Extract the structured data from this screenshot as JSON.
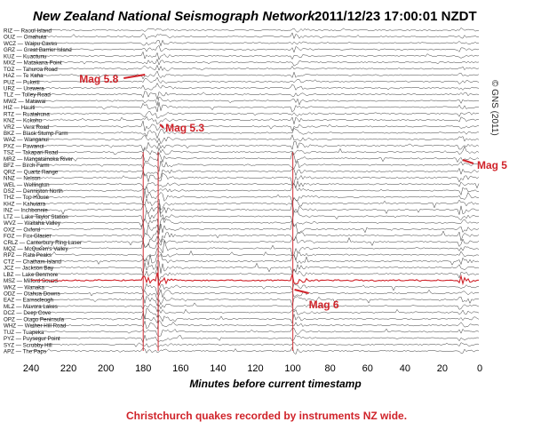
{
  "header": {
    "title": "New Zealand National Seismograph Network",
    "timestamp": "2011/12/23 17:00:01 NZDT",
    "copyright": "© GNS (2011)"
  },
  "caption": "Christchurch quakes recorded by instruments NZ wide.",
  "chart_data": {
    "type": "line",
    "title": "New Zealand National Seismograph Network",
    "xlabel": "Minutes before current timestamp",
    "ylabel": "",
    "xlim": [
      240,
      0
    ],
    "x_ticks": [
      240,
      220,
      200,
      180,
      160,
      140,
      120,
      100,
      80,
      60,
      40,
      20,
      0
    ],
    "grid": false,
    "stations": [
      {
        "code": "RIZ",
        "name": "Raoul Island"
      },
      {
        "code": "OUZ",
        "name": "Omahuta"
      },
      {
        "code": "WCZ",
        "name": "Waipu Caves"
      },
      {
        "code": "GRZ",
        "name": "Great Barrier Island"
      },
      {
        "code": "KUZ",
        "name": "Kuaotunu"
      },
      {
        "code": "MXZ",
        "name": "Matakana Point"
      },
      {
        "code": "TOZ",
        "name": "Tahuroa Road"
      },
      {
        "code": "HAZ",
        "name": "Te Kaha"
      },
      {
        "code": "PUZ",
        "name": "Pukeiti"
      },
      {
        "code": "URZ",
        "name": "Urewera"
      },
      {
        "code": "TLZ",
        "name": "Tolley Road"
      },
      {
        "code": "MWZ",
        "name": "Matawai"
      },
      {
        "code": "HIZ",
        "name": "Hauiti"
      },
      {
        "code": "RTZ",
        "name": "Ruatahuna"
      },
      {
        "code": "KNZ",
        "name": "Kokohu"
      },
      {
        "code": "VRZ",
        "name": "Vera Road"
      },
      {
        "code": "BKZ",
        "name": "Black Stump Farm"
      },
      {
        "code": "WAZ",
        "name": "Wanganui"
      },
      {
        "code": "PXZ",
        "name": "Pawanui"
      },
      {
        "code": "TSZ",
        "name": "Takapari Road"
      },
      {
        "code": "MRZ",
        "name": "Mangatainoka River"
      },
      {
        "code": "BFZ",
        "name": "Birch Farm"
      },
      {
        "code": "QRZ",
        "name": "Quartz Range"
      },
      {
        "code": "NNZ",
        "name": "Nelson"
      },
      {
        "code": "WEL",
        "name": "Wellington"
      },
      {
        "code": "DSZ",
        "name": "Denniston North"
      },
      {
        "code": "THZ",
        "name": "Top House"
      },
      {
        "code": "KHZ",
        "name": "Kahutara"
      },
      {
        "code": "INZ",
        "name": "Inchbonnie"
      },
      {
        "code": "LTZ",
        "name": "Lake Taylor Station"
      },
      {
        "code": "WVZ",
        "name": "Waitaha Valley"
      },
      {
        "code": "OXZ",
        "name": "Oxford"
      },
      {
        "code": "FOZ",
        "name": "Fox Glacier"
      },
      {
        "code": "CRLZ",
        "name": "Canterbury Ring Laser"
      },
      {
        "code": "MQZ",
        "name": "McQueen's Valley"
      },
      {
        "code": "RPZ",
        "name": "Rata Peaks"
      },
      {
        "code": "CTZ",
        "name": "Chatham Island"
      },
      {
        "code": "JCZ",
        "name": "Jackson Bay"
      },
      {
        "code": "LBZ",
        "name": "Lake Benmore"
      },
      {
        "code": "MSZ",
        "name": "Milford Sound"
      },
      {
        "code": "WKZ",
        "name": "Wanaka"
      },
      {
        "code": "ODZ",
        "name": "Otahua Downs"
      },
      {
        "code": "EAZ",
        "name": "Earnscleugh"
      },
      {
        "code": "MLZ",
        "name": "Mavora Lakes"
      },
      {
        "code": "DCZ",
        "name": "Deep Cove"
      },
      {
        "code": "OPZ",
        "name": "Otago Peninsula"
      },
      {
        "code": "WHZ",
        "name": "Wether Hill Road"
      },
      {
        "code": "TUZ",
        "name": "Tuapeka"
      },
      {
        "code": "PYZ",
        "name": "Puysegur Point"
      },
      {
        "code": "SYZ",
        "name": "Scrubby Hill"
      },
      {
        "code": "APZ",
        "name": "The Paps"
      }
    ],
    "events_minutes_before": [
      180,
      172,
      100,
      10
    ],
    "highlight_station": "MSZ",
    "annotations": [
      {
        "text": "Mag 5.8",
        "x": 180
      },
      {
        "text": "Mag 5.3",
        "x": 172
      },
      {
        "text": "Mag 6",
        "x": 100
      },
      {
        "text": "Mag 5",
        "x": 10
      }
    ],
    "colors": {
      "trace": "#3a3a3a",
      "event": "#d0232a",
      "annotation": "#d0232a"
    }
  }
}
